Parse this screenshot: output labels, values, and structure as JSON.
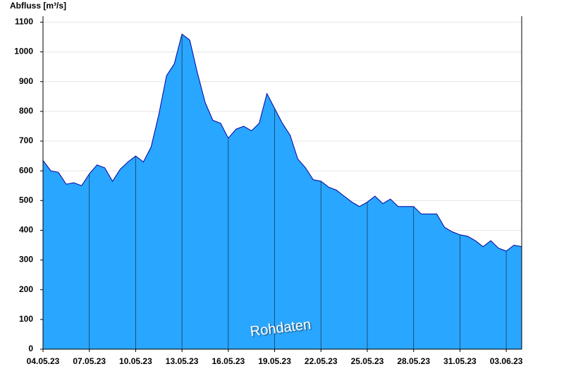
{
  "chart_data": {
    "type": "area",
    "y_label": "Abfluss [m³/s]",
    "watermark": "Rohdaten",
    "color": "#29a6ff",
    "line_color": "#0000a0",
    "grid": true,
    "x": [
      "2023-05-04T00:00",
      "2023-05-04T12:00",
      "2023-05-05T00:00",
      "2023-05-05T12:00",
      "2023-05-06T00:00",
      "2023-05-06T12:00",
      "2023-05-07T00:00",
      "2023-05-07T12:00",
      "2023-05-08T00:00",
      "2023-05-08T12:00",
      "2023-05-09T00:00",
      "2023-05-09T12:00",
      "2023-05-10T00:00",
      "2023-05-10T12:00",
      "2023-05-11T00:00",
      "2023-05-11T12:00",
      "2023-05-12T00:00",
      "2023-05-12T12:00",
      "2023-05-13T00:00",
      "2023-05-13T12:00",
      "2023-05-14T00:00",
      "2023-05-14T12:00",
      "2023-05-15T00:00",
      "2023-05-15T12:00",
      "2023-05-16T00:00",
      "2023-05-16T12:00",
      "2023-05-17T00:00",
      "2023-05-17T12:00",
      "2023-05-18T00:00",
      "2023-05-18T12:00",
      "2023-05-19T00:00",
      "2023-05-19T12:00",
      "2023-05-20T00:00",
      "2023-05-20T12:00",
      "2023-05-21T00:00",
      "2023-05-21T12:00",
      "2023-05-22T00:00",
      "2023-05-22T12:00",
      "2023-05-23T00:00",
      "2023-05-23T12:00",
      "2023-05-24T00:00",
      "2023-05-24T12:00",
      "2023-05-25T00:00",
      "2023-05-25T12:00",
      "2023-05-26T00:00",
      "2023-05-26T12:00",
      "2023-05-27T00:00",
      "2023-05-27T12:00",
      "2023-05-28T00:00",
      "2023-05-28T12:00",
      "2023-05-29T00:00",
      "2023-05-29T12:00",
      "2023-05-30T00:00",
      "2023-05-30T12:00",
      "2023-05-31T00:00",
      "2023-05-31T12:00",
      "2023-06-01T00:00",
      "2023-06-01T12:00",
      "2023-06-02T00:00",
      "2023-06-02T12:00",
      "2023-06-03T00:00",
      "2023-06-03T12:00",
      "2023-06-04T00:00"
    ],
    "values": [
      635,
      600,
      595,
      555,
      560,
      550,
      590,
      620,
      610,
      565,
      605,
      630,
      650,
      630,
      680,
      790,
      920,
      960,
      1060,
      1040,
      930,
      830,
      770,
      760,
      710,
      740,
      750,
      735,
      760,
      860,
      810,
      760,
      720,
      640,
      610,
      570,
      565,
      545,
      535,
      515,
      495,
      480,
      495,
      515,
      490,
      505,
      480,
      480,
      480,
      455,
      455,
      455,
      410,
      395,
      385,
      380,
      365,
      345,
      365,
      340,
      330,
      350,
      345
    ],
    "xlim": [
      "2023-05-04T00:00",
      "2023-06-04T00:00"
    ],
    "xticks": [
      {
        "value": "2023-05-04T00:00",
        "label": "04.05.23"
      },
      {
        "value": "2023-05-07T00:00",
        "label": "07.05.23"
      },
      {
        "value": "2023-05-10T00:00",
        "label": "10.05.23"
      },
      {
        "value": "2023-05-13T00:00",
        "label": "13.05.23"
      },
      {
        "value": "2023-05-16T00:00",
        "label": "16.05.23"
      },
      {
        "value": "2023-05-19T00:00",
        "label": "19.05.23"
      },
      {
        "value": "2023-05-22T00:00",
        "label": "22.05.23"
      },
      {
        "value": "2023-05-25T00:00",
        "label": "25.05.23"
      },
      {
        "value": "2023-05-28T00:00",
        "label": "28.05.23"
      },
      {
        "value": "2023-05-31T00:00",
        "label": "31.05.23"
      },
      {
        "value": "2023-06-03T00:00",
        "label": "03.06.23"
      }
    ],
    "ylim": [
      0,
      1120
    ],
    "yticks": [
      0,
      100,
      200,
      300,
      400,
      500,
      600,
      700,
      800,
      900,
      1000,
      1100
    ]
  }
}
